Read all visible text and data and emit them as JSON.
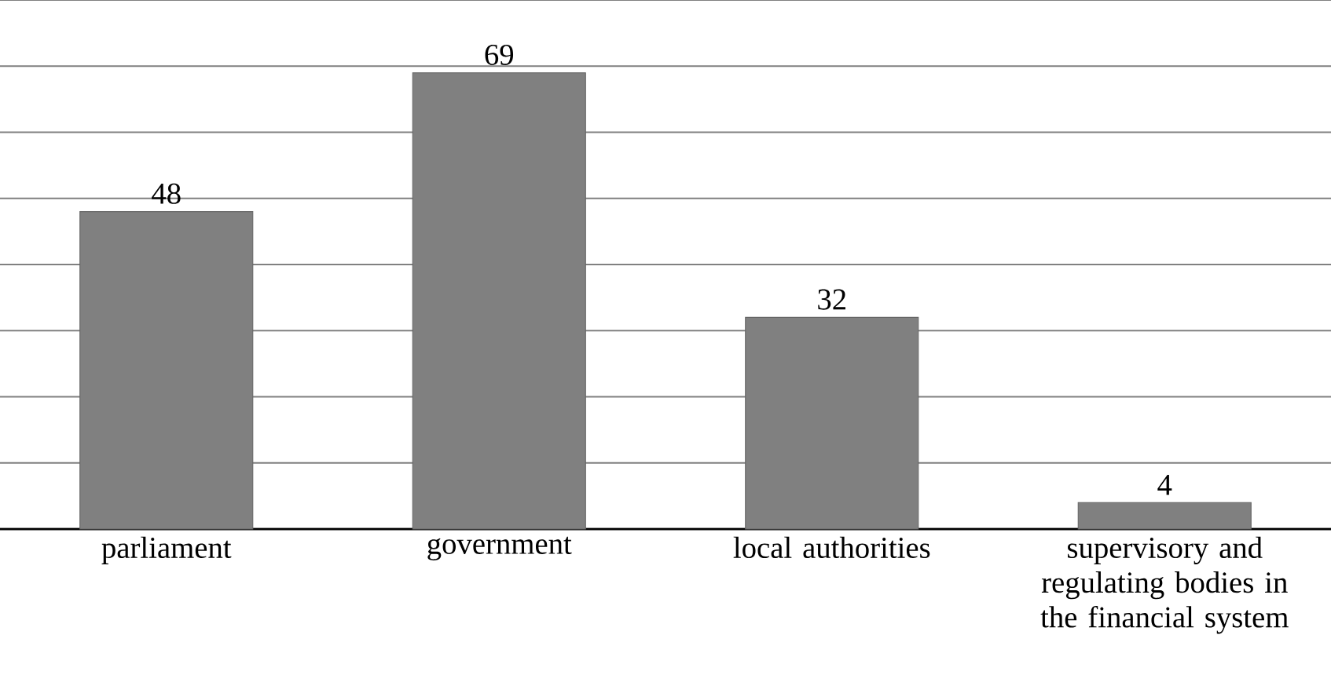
{
  "chart_data": {
    "type": "bar",
    "categories": [
      "parliament",
      "government",
      "local authorities",
      "supervisory and regulating bodies in the financial system"
    ],
    "values": [
      48,
      69,
      32,
      4
    ],
    "color": "#808080",
    "data_labels": true,
    "grid": "y",
    "tick_labels": "x",
    "ylim": [
      0,
      80
    ],
    "yticks": [
      {
        "value": 0,
        "label": null
      },
      {
        "value": 10,
        "label": null
      },
      {
        "value": 20,
        "label": null
      },
      {
        "value": 30,
        "label": null
      },
      {
        "value": 40,
        "label": null
      },
      {
        "value": 50,
        "label": null
      },
      {
        "value": 60,
        "label": null
      },
      {
        "value": 70,
        "label": null
      },
      {
        "value": 80,
        "label": null
      }
    ]
  }
}
